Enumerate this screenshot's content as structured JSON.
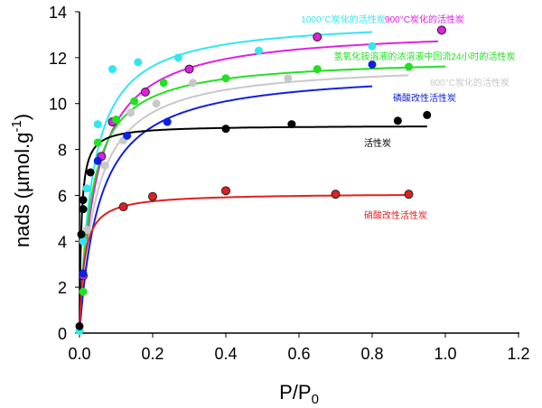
{
  "chart_data": {
    "type": "scatter",
    "xlabel": "P/P",
    "xlabel_sub": "0",
    "ylabel": "nads (µmol.g",
    "ylabel_sup": "-1",
    "ylabel_end": ")",
    "xlim": [
      0,
      1.2
    ],
    "ylim": [
      0,
      14
    ],
    "xticks": [
      "0.0",
      "0.2",
      "0.4",
      "0.6",
      "0.8",
      "1.0",
      "1.2"
    ],
    "yticks": [
      "0",
      "2",
      "4",
      "6",
      "8",
      "10",
      "12",
      "14"
    ],
    "grid": false,
    "series": [
      {
        "name": "1000°C炭化的活性炭",
        "color": "#33e6f0",
        "fit": {
          "qm": 13.7,
          "K": 28,
          "xmax": 0.8
        },
        "points": [
          [
            0.0,
            0.1
          ],
          [
            0.01,
            4.0
          ],
          [
            0.02,
            6.3
          ],
          [
            0.05,
            9.1
          ],
          [
            0.09,
            11.5
          ],
          [
            0.16,
            11.8
          ],
          [
            0.27,
            12.0
          ],
          [
            0.49,
            12.3
          ],
          [
            0.8,
            12.5
          ]
        ]
      },
      {
        "name": "900°C炭化的活性炭",
        "color": "#e020e0",
        "outline": true,
        "fit": {
          "qm": 13.3,
          "K": 22,
          "xmax": 0.98
        },
        "points": [
          [
            0.01,
            2.5
          ],
          [
            0.06,
            7.7
          ],
          [
            0.09,
            9.2
          ],
          [
            0.18,
            10.5
          ],
          [
            0.3,
            11.5
          ],
          [
            0.65,
            12.9
          ],
          [
            0.99,
            13.2
          ]
        ]
      },
      {
        "name": "氢氧化铵溶液的浓溶液中回流24小时的活性炭",
        "color": "#22e022",
        "fit": {
          "qm": 12.0,
          "K": 30,
          "xmax": 1.0
        },
        "points": [
          [
            0.01,
            1.8
          ],
          [
            0.05,
            8.3
          ],
          [
            0.1,
            9.3
          ],
          [
            0.15,
            10.1
          ],
          [
            0.23,
            10.9
          ],
          [
            0.4,
            11.1
          ],
          [
            0.65,
            11.5
          ],
          [
            0.9,
            11.6
          ]
        ]
      },
      {
        "name": "800°C炭化的活性炭",
        "color": "#c8c8c8",
        "fit": {
          "qm": 11.8,
          "K": 22,
          "xmax": 0.9
        },
        "points": [
          [
            0.02,
            4.5
          ],
          [
            0.07,
            7.3
          ],
          [
            0.12,
            8.4
          ],
          [
            0.14,
            9.6
          ],
          [
            0.21,
            10.0
          ],
          [
            0.31,
            10.9
          ],
          [
            0.57,
            11.1
          ]
        ]
      },
      {
        "name": "磷酸改性活性炭",
        "color": "#1020e0",
        "fit": {
          "qm": 11.5,
          "K": 18,
          "xmax": 0.8
        },
        "points": [
          [
            0.01,
            2.6
          ],
          [
            0.05,
            7.5
          ],
          [
            0.13,
            8.6
          ],
          [
            0.24,
            9.2
          ],
          [
            0.8,
            11.7
          ]
        ]
      },
      {
        "name": "活性炭",
        "color": "#000000",
        "fit": {
          "qm": 9.05,
          "K": 200,
          "xmax": 0.95
        },
        "points": [
          [
            0.0,
            0.3
          ],
          [
            0.005,
            4.3
          ],
          [
            0.01,
            5.4
          ],
          [
            0.01,
            5.8
          ],
          [
            0.03,
            7.0
          ],
          [
            0.4,
            8.9
          ],
          [
            0.58,
            9.1
          ],
          [
            0.87,
            9.25
          ],
          [
            0.95,
            9.5
          ]
        ]
      },
      {
        "name": "硝酸改性活性炭",
        "color": "#e02020",
        "outline": true,
        "fit": {
          "qm": 6.1,
          "K": 80,
          "xmax": 0.9
        },
        "points": [
          [
            0.12,
            5.5
          ],
          [
            0.2,
            5.95
          ],
          [
            0.4,
            6.2
          ],
          [
            0.7,
            6.05
          ],
          [
            0.9,
            6.05
          ]
        ]
      }
    ]
  }
}
